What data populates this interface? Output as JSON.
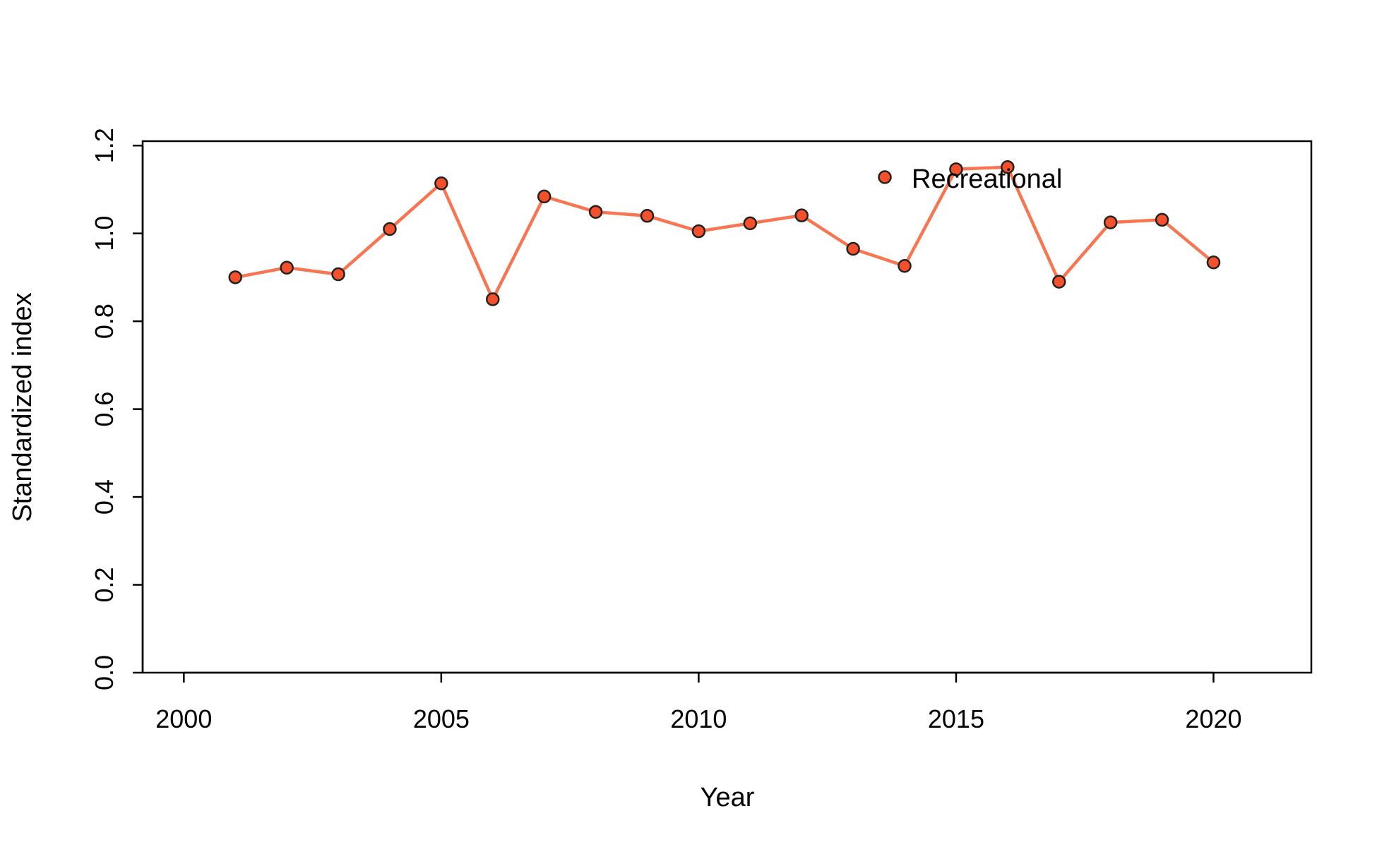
{
  "chart_data": {
    "type": "line",
    "title": "",
    "xlabel": "Year",
    "ylabel": "Standardized index",
    "xlim": [
      1999.2,
      2021.9
    ],
    "ylim": [
      0.0,
      1.21
    ],
    "x_ticks": [
      "2000",
      "2005",
      "2010",
      "2015",
      "2020"
    ],
    "y_ticks": [
      "0.0",
      "0.2",
      "0.4",
      "0.6",
      "0.8",
      "1.0",
      "1.2"
    ],
    "legend_position": "top-right",
    "grid": false,
    "series": [
      {
        "name": "Recreational",
        "line_color": "#f87552",
        "point_fill": "#f4502b",
        "point_stroke": "#222222",
        "points": [
          {
            "x": 2001,
            "y": 0.9
          },
          {
            "x": 2002,
            "y": 0.922
          },
          {
            "x": 2003,
            "y": 0.907
          },
          {
            "x": 2004,
            "y": 1.01
          },
          {
            "x": 2005,
            "y": 1.114
          },
          {
            "x": 2006,
            "y": 0.85
          },
          {
            "x": 2007,
            "y": 1.084
          },
          {
            "x": 2008,
            "y": 1.049
          },
          {
            "x": 2009,
            "y": 1.04
          },
          {
            "x": 2010,
            "y": 1.005
          },
          {
            "x": 2011,
            "y": 1.023
          },
          {
            "x": 2012,
            "y": 1.041
          },
          {
            "x": 2013,
            "y": 0.965
          },
          {
            "x": 2014,
            "y": 0.926
          },
          {
            "x": 2015,
            "y": 1.146
          },
          {
            "x": 2016,
            "y": 1.151
          },
          {
            "x": 2017,
            "y": 0.89
          },
          {
            "x": 2018,
            "y": 1.025
          },
          {
            "x": 2019,
            "y": 1.031
          },
          {
            "x": 2020,
            "y": 0.934
          }
        ]
      }
    ]
  }
}
